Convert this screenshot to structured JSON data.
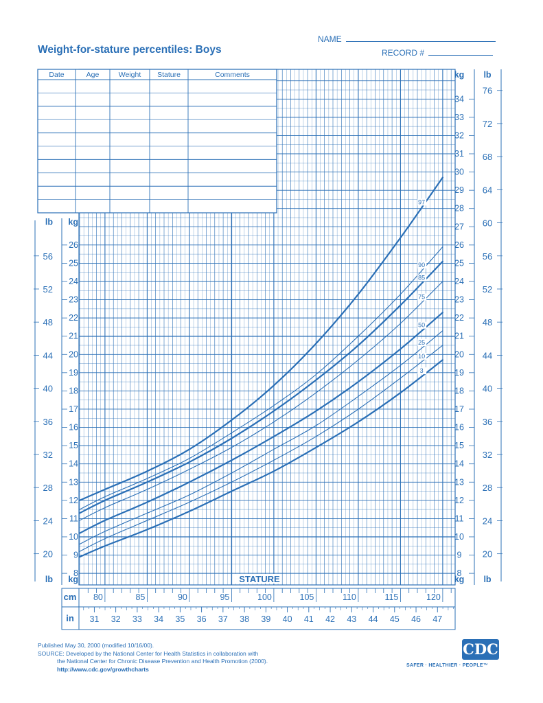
{
  "header": {
    "title": "Weight-for-stature percentiles: Boys",
    "name_label": "NAME",
    "record_label": "RECORD #"
  },
  "record_table": {
    "columns": [
      "Date",
      "Age",
      "Weight",
      "Stature",
      "Comments"
    ],
    "row_count": 10
  },
  "footer": {
    "published": "Published May 30, 2000 (modified 10/16/00).",
    "source_line1": "SOURCE: Developed by the National Center for Health Statistics in collaboration with",
    "source_line2": "the National Center for Chronic Disease Prevention and Health Promotion (2000).",
    "url": "http://www.cdc.gov/growthcharts",
    "logo_text": "CDC",
    "tagline": "SAFER · HEALTHIER · PEOPLE™"
  },
  "colors": {
    "ink": "#2a6fb6",
    "grid": "#2a6fb6"
  },
  "chart_data": {
    "type": "line",
    "title": "Weight-for-stature percentiles: Boys",
    "x_axis_label": "STATURE",
    "x_unit_cm": "cm",
    "x_unit_in": "in",
    "y_unit_kg": "kg",
    "y_unit_lb": "lb",
    "xlim_cm": [
      77,
      121
    ],
    "ylim_kg": [
      7.5,
      35.5
    ],
    "cm_ticks": [
      80,
      85,
      90,
      95,
      100,
      105,
      110,
      115,
      120
    ],
    "in_ticks": [
      31,
      32,
      33,
      34,
      35,
      36,
      37,
      38,
      39,
      40,
      41,
      42,
      43,
      44,
      45,
      46,
      47
    ],
    "kg_ticks_left": [
      8,
      9,
      10,
      11,
      12,
      13,
      14,
      15,
      16,
      17,
      18,
      19,
      20,
      21,
      22,
      23,
      24,
      25,
      26
    ],
    "kg_ticks_right": [
      8,
      9,
      10,
      11,
      12,
      13,
      14,
      15,
      16,
      17,
      18,
      19,
      20,
      21,
      22,
      23,
      24,
      25,
      26,
      27,
      28,
      29,
      30,
      31,
      32,
      33,
      34
    ],
    "lb_ticks_left": [
      20,
      24,
      28,
      32,
      36,
      40,
      44,
      48,
      52,
      56
    ],
    "lb_ticks_right": [
      20,
      24,
      28,
      32,
      36,
      40,
      44,
      48,
      52,
      56,
      60,
      64,
      68,
      72,
      76
    ],
    "series": [
      {
        "name": "97",
        "label_at_cm": 117.5,
        "x_cm": [
          77,
          80,
          85,
          90,
          95,
          100,
          105,
          110,
          115,
          120
        ],
        "y_kg": [
          12.0,
          12.6,
          13.6,
          14.8,
          16.4,
          18.3,
          20.6,
          23.3,
          26.4,
          29.7
        ]
      },
      {
        "name": "90",
        "label_at_cm": 117.5,
        "x_cm": [
          77,
          80,
          85,
          90,
          95,
          100,
          105,
          110,
          115,
          120
        ],
        "y_kg": [
          11.5,
          12.2,
          13.2,
          14.3,
          15.7,
          17.2,
          18.9,
          21.0,
          23.3,
          25.9
        ]
      },
      {
        "name": "85",
        "label_at_cm": 117.5,
        "x_cm": [
          77,
          80,
          85,
          90,
          95,
          100,
          105,
          110,
          115,
          120
        ],
        "y_kg": [
          11.3,
          12.0,
          13.0,
          14.1,
          15.4,
          16.9,
          18.6,
          20.5,
          22.7,
          25.1
        ]
      },
      {
        "name": "75",
        "label_at_cm": 117.5,
        "x_cm": [
          77,
          80,
          85,
          90,
          95,
          100,
          105,
          110,
          115,
          120
        ],
        "y_kg": [
          10.9,
          11.6,
          12.6,
          13.7,
          14.9,
          16.3,
          17.9,
          19.7,
          21.7,
          24.0
        ]
      },
      {
        "name": "50",
        "label_at_cm": 117.5,
        "x_cm": [
          77,
          80,
          85,
          90,
          95,
          100,
          105,
          110,
          115,
          120
        ],
        "y_kg": [
          10.2,
          10.9,
          11.9,
          13.0,
          14.2,
          15.5,
          16.9,
          18.5,
          20.3,
          22.3
        ]
      },
      {
        "name": "25",
        "label_at_cm": 117.5,
        "x_cm": [
          77,
          80,
          85,
          90,
          95,
          100,
          105,
          110,
          115,
          120
        ],
        "y_kg": [
          9.6,
          10.3,
          11.3,
          12.3,
          13.5,
          14.8,
          16.1,
          17.7,
          19.4,
          21.3
        ]
      },
      {
        "name": "10",
        "label_at_cm": 117.5,
        "x_cm": [
          77,
          80,
          85,
          90,
          95,
          100,
          105,
          110,
          115,
          120
        ],
        "y_kg": [
          9.2,
          9.9,
          10.9,
          11.9,
          13.0,
          14.2,
          15.5,
          17.0,
          18.7,
          20.5
        ]
      },
      {
        "name": "3",
        "label_at_cm": 117.5,
        "x_cm": [
          77,
          80,
          85,
          90,
          95,
          100,
          105,
          110,
          115,
          120
        ],
        "y_kg": [
          8.9,
          9.5,
          10.4,
          11.4,
          12.5,
          13.6,
          14.9,
          16.3,
          17.9,
          19.7
        ]
      }
    ]
  }
}
